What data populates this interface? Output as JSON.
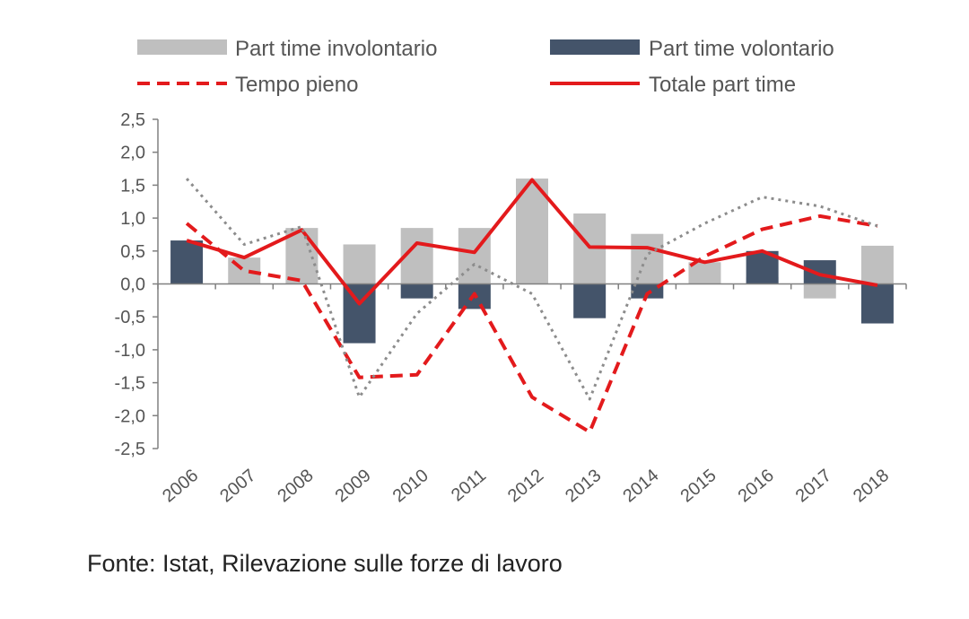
{
  "chart_data": {
    "type": "bar",
    "categories": [
      "2006",
      "2007",
      "2008",
      "2009",
      "2010",
      "2011",
      "2012",
      "2013",
      "2014",
      "2015",
      "2016",
      "2017",
      "2018"
    ],
    "y_ticks": [
      "2,5",
      "2,0",
      "1,5",
      "1,0",
      "0,5",
      "0,0",
      "-0,5",
      "-1,0",
      "-1,5",
      "-2,0",
      "-2,5"
    ],
    "ylim": [
      -2.5,
      2.5
    ],
    "legend_position": "top",
    "series": [
      {
        "name": "Part time involontario",
        "kind": "bar",
        "color": "#bfbfbf",
        "values": [
          0.0,
          0.4,
          0.85,
          0.6,
          0.85,
          0.85,
          1.6,
          1.07,
          0.76,
          0.33,
          0.1,
          -0.22,
          0.58
        ]
      },
      {
        "name": "Part time volontario",
        "kind": "bar",
        "color": "#44546a",
        "values": [
          0.66,
          0.0,
          0.0,
          -0.9,
          -0.22,
          -0.38,
          0.0,
          -0.52,
          -0.22,
          0.0,
          0.5,
          0.36,
          -0.6
        ]
      },
      {
        "name": "Tempo pieno",
        "kind": "line",
        "style": "dashed",
        "color": "#e31a1c",
        "values": [
          0.92,
          0.2,
          0.05,
          -1.42,
          -1.38,
          -0.15,
          -1.72,
          -2.25,
          -0.15,
          0.42,
          0.83,
          1.03,
          0.88
        ]
      },
      {
        "name": "Totale part time",
        "kind": "line",
        "style": "solid",
        "color": "#e31a1c",
        "values": [
          0.66,
          0.4,
          0.82,
          -0.3,
          0.62,
          0.48,
          1.58,
          0.56,
          0.55,
          0.33,
          0.5,
          0.14,
          -0.02
        ]
      },
      {
        "name": "",
        "kind": "line",
        "style": "dotted",
        "color": "#8c8c8c",
        "values": [
          1.6,
          0.6,
          0.87,
          -1.72,
          -0.45,
          0.3,
          -0.15,
          -1.75,
          0.45,
          0.92,
          1.32,
          1.18,
          0.88
        ]
      }
    ]
  },
  "source": "Fonte: Istat, Rilevazione sulle forze di lavoro"
}
